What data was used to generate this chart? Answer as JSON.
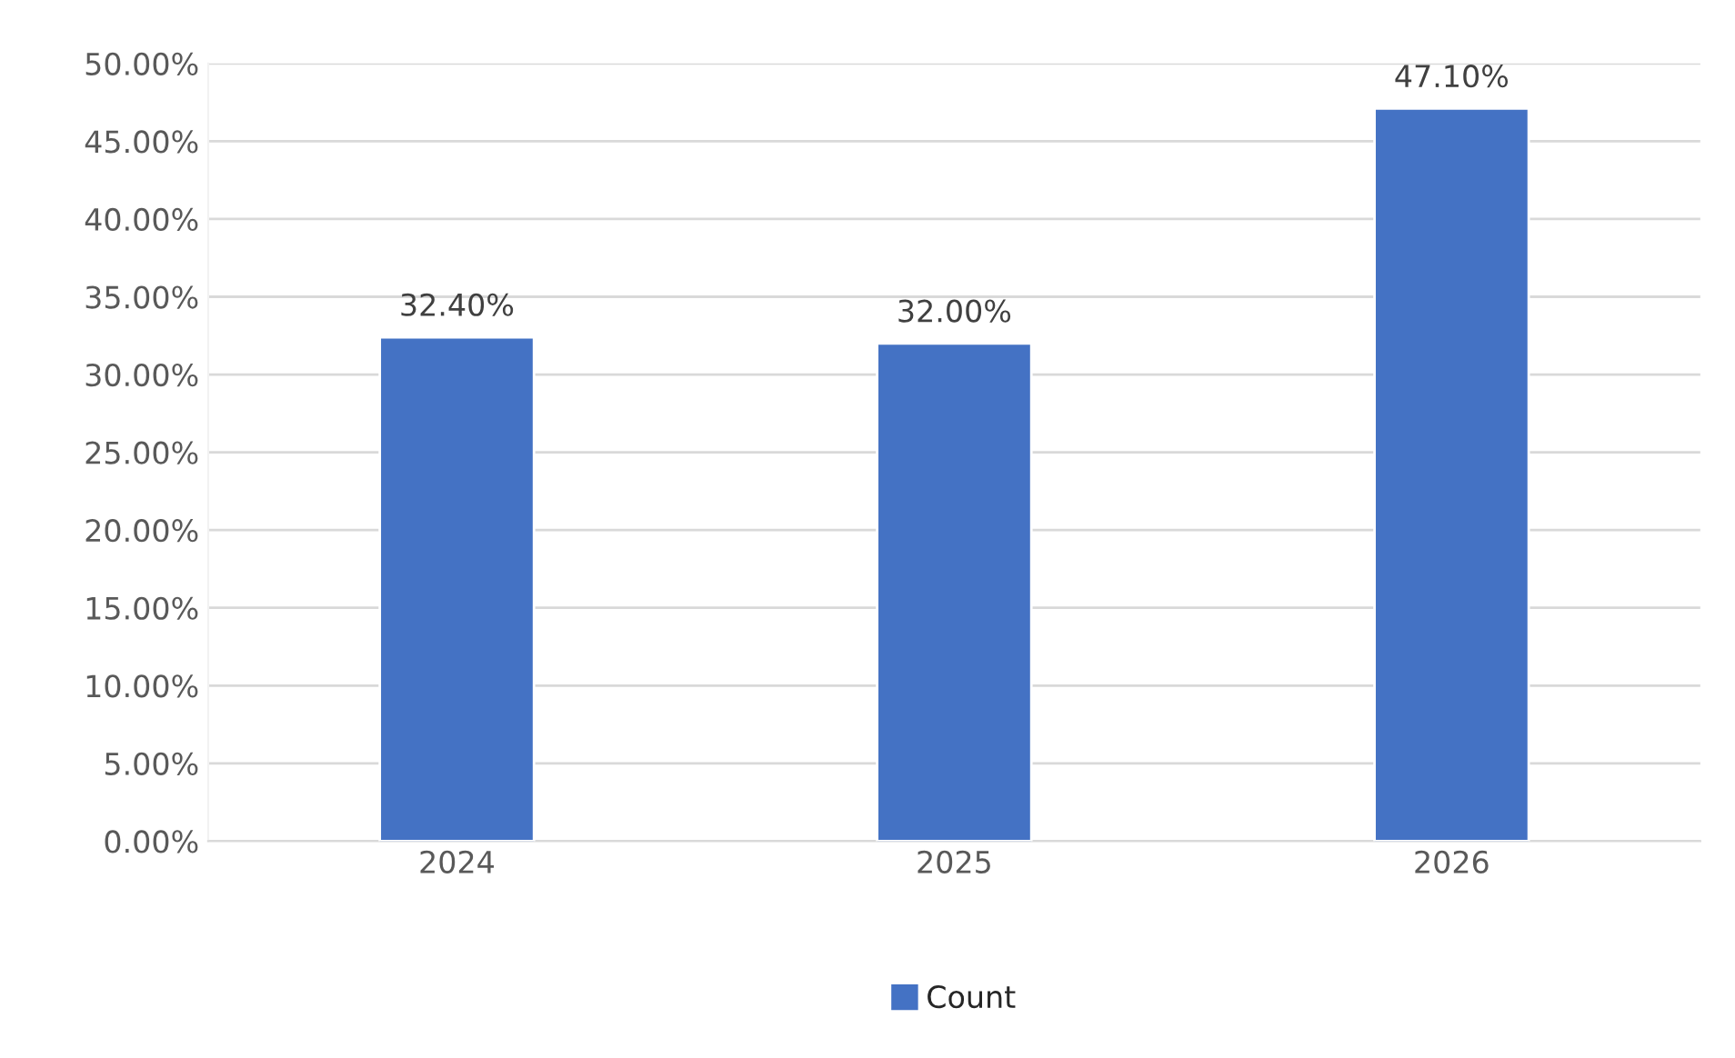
{
  "chart_data": {
    "type": "bar",
    "categories": [
      "2024",
      "2025",
      "2026"
    ],
    "series": [
      {
        "name": "Count",
        "color": "#4472c4",
        "values": [
          32.4,
          32.0,
          47.1
        ],
        "value_labels": [
          "32.40%",
          "32.00%",
          "47.10%"
        ]
      }
    ],
    "ylim": [
      0,
      50
    ],
    "yticks": [
      {
        "value": 0,
        "label": "0.00%"
      },
      {
        "value": 5,
        "label": "5.00%"
      },
      {
        "value": 10,
        "label": "10.00%"
      },
      {
        "value": 15,
        "label": "15.00%"
      },
      {
        "value": 20,
        "label": "20.00%"
      },
      {
        "value": 25,
        "label": "25.00%"
      },
      {
        "value": 30,
        "label": "30.00%"
      },
      {
        "value": 35,
        "label": "35.00%"
      },
      {
        "value": 40,
        "label": "40.00%"
      },
      {
        "value": 45,
        "label": "45.00%"
      },
      {
        "value": 50,
        "label": "50.00%"
      }
    ],
    "grid": "y",
    "legend": "bottom"
  }
}
